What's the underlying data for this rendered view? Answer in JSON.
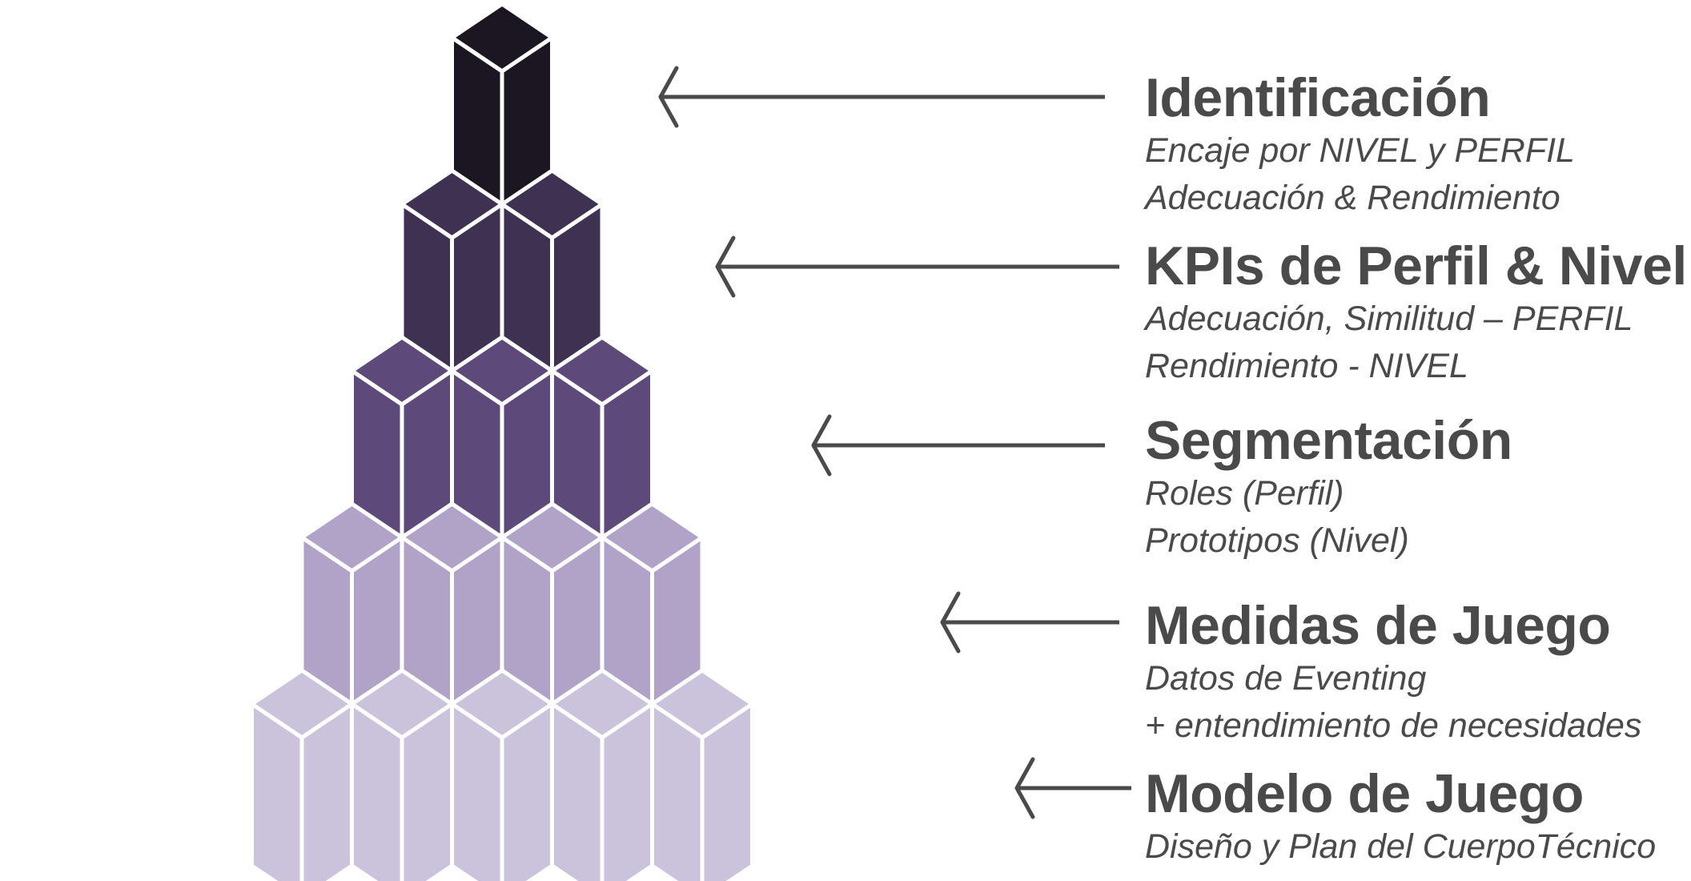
{
  "colors": {
    "tier_1": "#1c1622",
    "tier_2": "#3e3151",
    "tier_3": "#5d4a7a",
    "tier_4": "#b1a3c8",
    "tier_5": "#cbc2dc",
    "outline": "#ffffff",
    "arrow": "#4a4a4a",
    "text": "#4a4a4a"
  },
  "levels": [
    {
      "title": "Identificación",
      "lines": [
        "Encaje por NIVEL y PERFIL",
        "Adecuación & Rendimiento"
      ]
    },
    {
      "title": "KPIs de Perfil & Nivel",
      "lines": [
        "Adecuación, Similitud – PERFIL",
        "Rendimiento - NIVEL"
      ]
    },
    {
      "title": "Segmentación",
      "lines": [
        "Roles (Perfil)",
        "Prototipos (Nivel)"
      ]
    },
    {
      "title": "Medidas de Juego",
      "lines": [
        "Datos de Eventing",
        "+ entendimiento de necesidades"
      ]
    },
    {
      "title": "Modelo de Juego",
      "lines": [
        "Diseño y Plan del CuerpoTécnico"
      ]
    }
  ],
  "pyramid": {
    "tiers": [
      {
        "tier": 1,
        "cubes": 1,
        "color_key": "tier_1"
      },
      {
        "tier": 2,
        "cubes": 2,
        "color_key": "tier_2"
      },
      {
        "tier": 3,
        "cubes": 3,
        "color_key": "tier_3"
      },
      {
        "tier": 4,
        "cubes": 4,
        "color_key": "tier_4"
      },
      {
        "tier": 5,
        "cubes": 5,
        "color_key": "tier_5"
      }
    ]
  }
}
